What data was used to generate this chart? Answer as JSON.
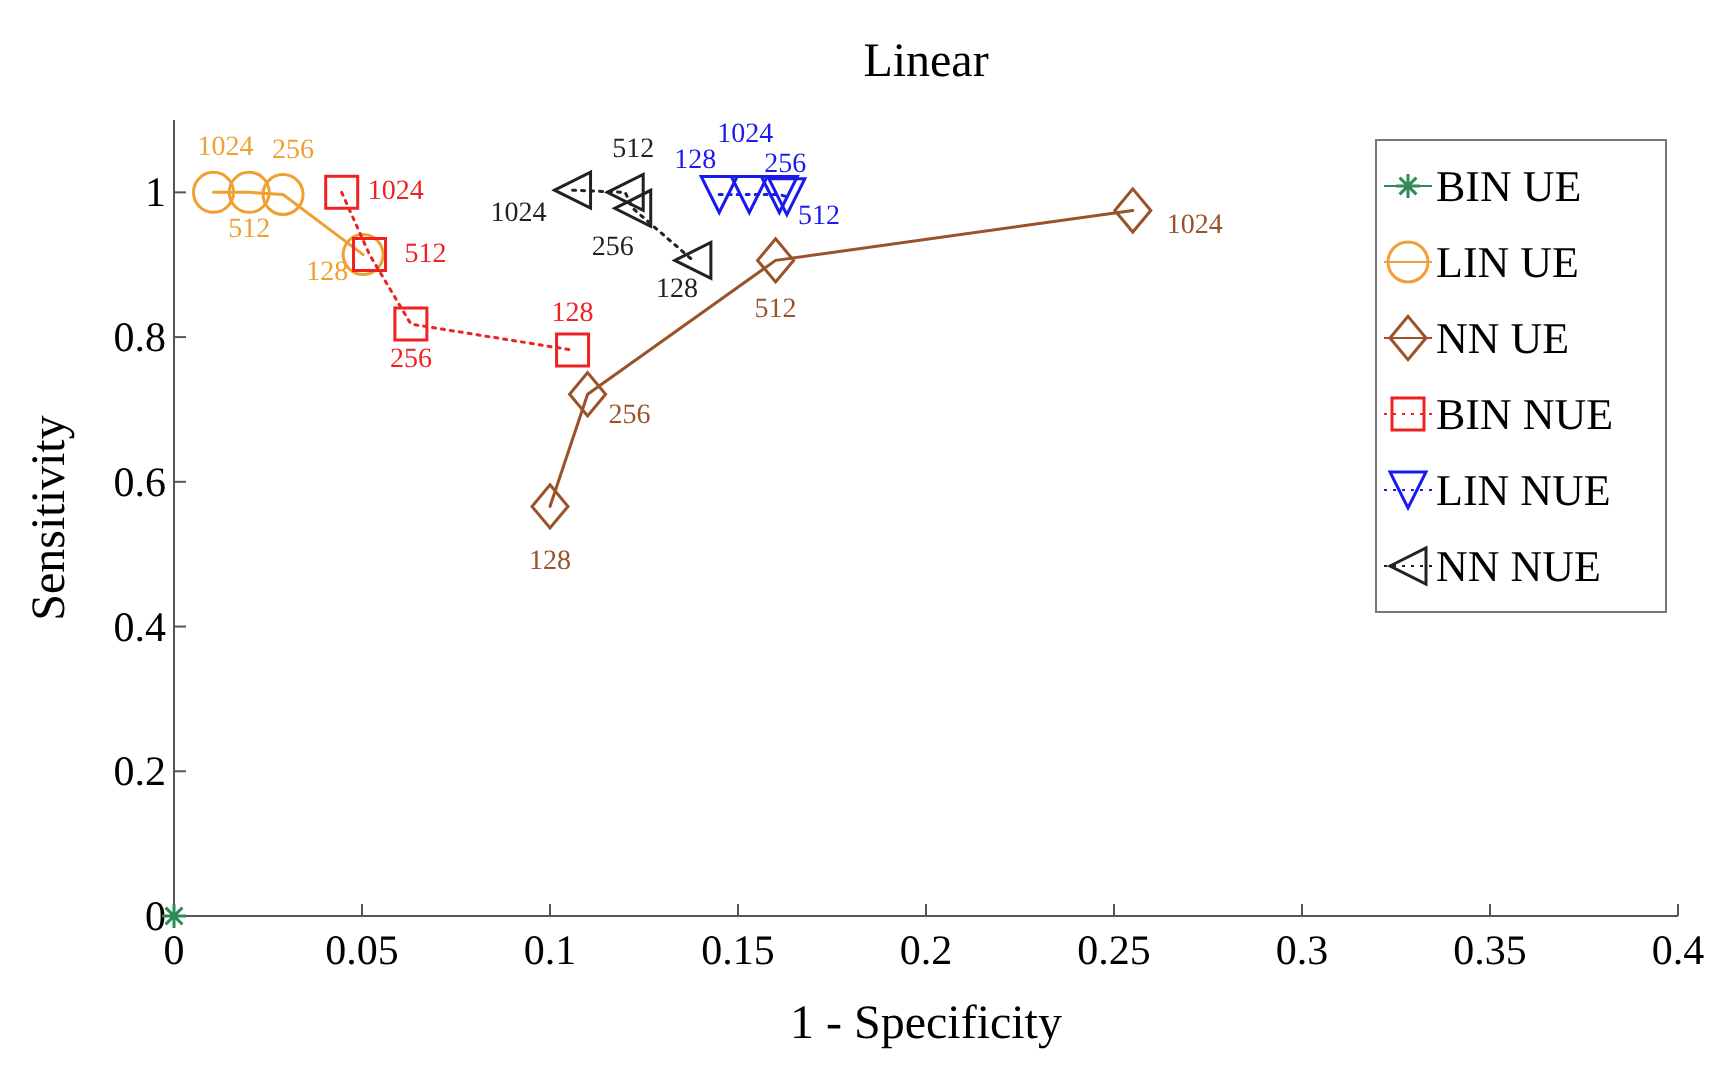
{
  "chart_data": {
    "type": "line",
    "title": "Linear",
    "xlabel": "1 - Specificity",
    "ylabel": "Sensitivity",
    "xlim": [
      0,
      0.4
    ],
    "xticks": [
      0,
      0.05,
      0.1,
      0.15,
      0.2,
      0.25,
      0.3,
      0.35,
      0.4
    ],
    "ylim": [
      0,
      1.1
    ],
    "yticks": [
      0,
      0.2,
      0.4,
      0.6,
      0.8,
      1
    ],
    "grid": false,
    "legend": "top right",
    "series": [
      {
        "name": "BIN UE",
        "color": "#2e8b57",
        "marker": "cross",
        "line_style": "solid",
        "x": [
          0
        ],
        "values": [
          0
        ]
      },
      {
        "name": "LIN UE",
        "color": "#f0a030",
        "marker": "circle",
        "line_style": "solid",
        "x": [
          0.0105,
          0.02,
          0.029,
          0.0503
        ],
        "values": [
          1,
          1,
          0.997,
          0.914
        ]
      },
      {
        "name": "NN UE",
        "color": "#9a5228",
        "marker": "diamond",
        "line_style": "solid",
        "x": [
          0.1,
          0.11,
          0.16,
          0.255
        ],
        "values": [
          0.566,
          0.721,
          0.906,
          0.975
        ]
      },
      {
        "name": "BIN NUE",
        "color": "#ee2222",
        "marker": "square",
        "line_style": "dotted",
        "x": [
          0.0446,
          0.052,
          0.063,
          0.106
        ],
        "values": [
          1,
          0.914,
          0.818,
          0.782
        ]
      },
      {
        "name": "LIN NUE",
        "color": "#1a1aee",
        "marker": "triangle-down",
        "line_style": "dotted",
        "x": [
          0.145,
          0.153,
          0.161,
          0.163
        ],
        "values": [
          0.997,
          0.997,
          0.997,
          0.994
        ]
      },
      {
        "name": "NN NUE",
        "color": "#222222",
        "marker": "triangle-left",
        "line_style": "dotted",
        "x": [
          0.106,
          0.12,
          0.122,
          0.138
        ],
        "values": [
          1.003,
          1,
          0.978,
          0.906
        ]
      }
    ],
    "annotations": [
      {
        "text": "1024",
        "x": 0.0105,
        "y": 1
      },
      {
        "text": "512",
        "x": 0.02,
        "y": 1
      },
      {
        "text": "256",
        "x": 0.029,
        "y": 0.997
      },
      {
        "text": "128",
        "x": 0.0503,
        "y": 0.914
      },
      {
        "text": "128",
        "x": 0.1,
        "y": 0.566
      },
      {
        "text": "256",
        "x": 0.11,
        "y": 0.721
      },
      {
        "text": "512",
        "x": 0.16,
        "y": 0.906
      },
      {
        "text": "1024",
        "x": 0.255,
        "y": 0.975
      },
      {
        "text": "1024",
        "x": 0.0446,
        "y": 1
      },
      {
        "text": "512",
        "x": 0.052,
        "y": 0.914
      },
      {
        "text": "256",
        "x": 0.063,
        "y": 0.818
      },
      {
        "text": "128",
        "x": 0.106,
        "y": 0.782
      },
      {
        "text": "128",
        "x": 0.145,
        "y": 0.997
      },
      {
        "text": "1024",
        "x": 0.153,
        "y": 0.997
      },
      {
        "text": "256",
        "x": 0.161,
        "y": 0.997
      },
      {
        "text": "512",
        "x": 0.163,
        "y": 0.994
      },
      {
        "text": "1024",
        "x": 0.106,
        "y": 1.003
      },
      {
        "text": "512",
        "x": 0.12,
        "y": 1
      },
      {
        "text": "256",
        "x": 0.122,
        "y": 0.978
      },
      {
        "text": "128",
        "x": 0.138,
        "y": 0.906
      }
    ]
  }
}
